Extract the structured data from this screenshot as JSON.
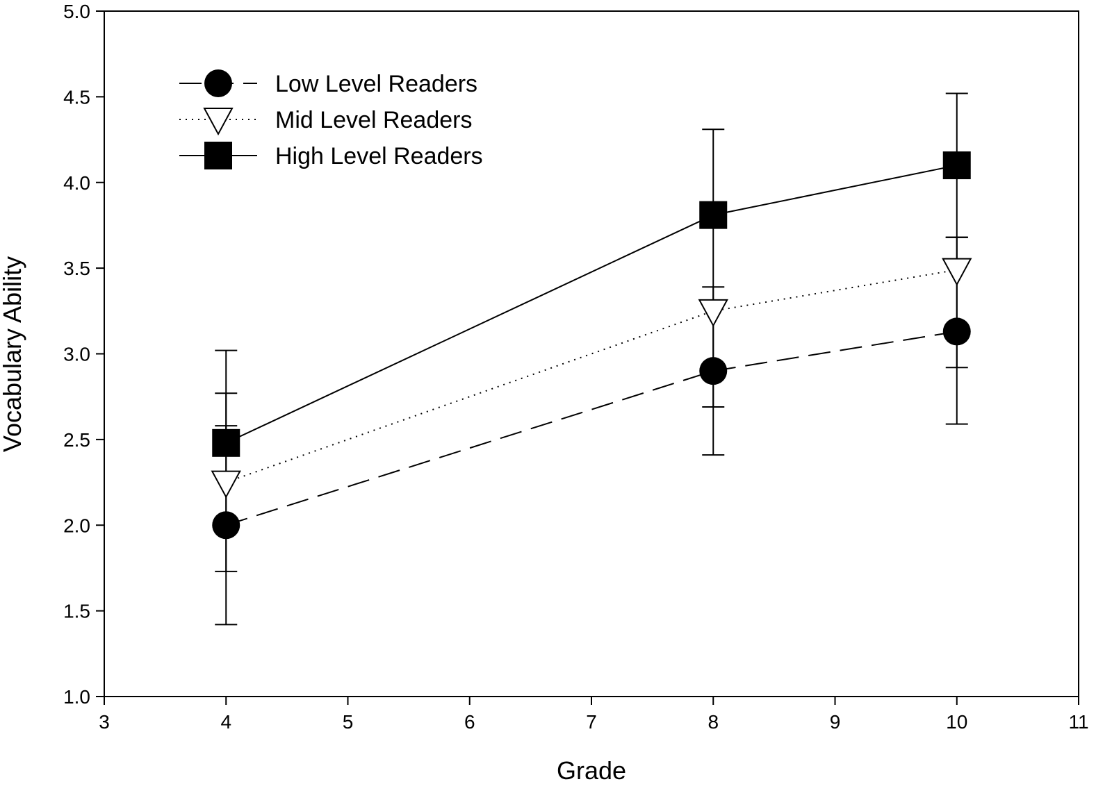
{
  "chart_data": {
    "type": "line",
    "xlabel": "Grade",
    "ylabel": "Vocabulary Ability",
    "xlim": [
      3,
      11
    ],
    "ylim": [
      1.0,
      5.0
    ],
    "xticks": [
      "3",
      "4",
      "5",
      "6",
      "7",
      "8",
      "9",
      "10",
      "11"
    ],
    "yticks": [
      "1.0",
      "1.5",
      "2.0",
      "2.5",
      "3.0",
      "3.5",
      "4.0",
      "4.5",
      "5.0"
    ],
    "grid": false,
    "legend_position": "top-left",
    "x": [
      4,
      8,
      10
    ],
    "series": [
      {
        "name": "Low Level Readers",
        "marker": "circle",
        "line_style": "dashed",
        "values": [
          2.0,
          2.9,
          3.13
        ],
        "error_low": [
          1.42,
          2.41,
          2.59
        ],
        "error_high": [
          2.58,
          3.39,
          3.68
        ]
      },
      {
        "name": "Mid Level Readers",
        "marker": "triangle-down",
        "line_style": "dotted",
        "values": [
          2.25,
          3.25,
          3.49
        ],
        "error_low": [
          1.73,
          2.69,
          2.92
        ],
        "error_high": [
          2.77,
          3.31,
          3.68
        ]
      },
      {
        "name": "High Level Readers",
        "marker": "square",
        "line_style": "solid",
        "values": [
          2.48,
          3.81,
          4.1
        ],
        "error_low": [
          2.48,
          3.31,
          3.68
        ],
        "error_high": [
          3.02,
          4.31,
          4.52
        ]
      }
    ]
  }
}
